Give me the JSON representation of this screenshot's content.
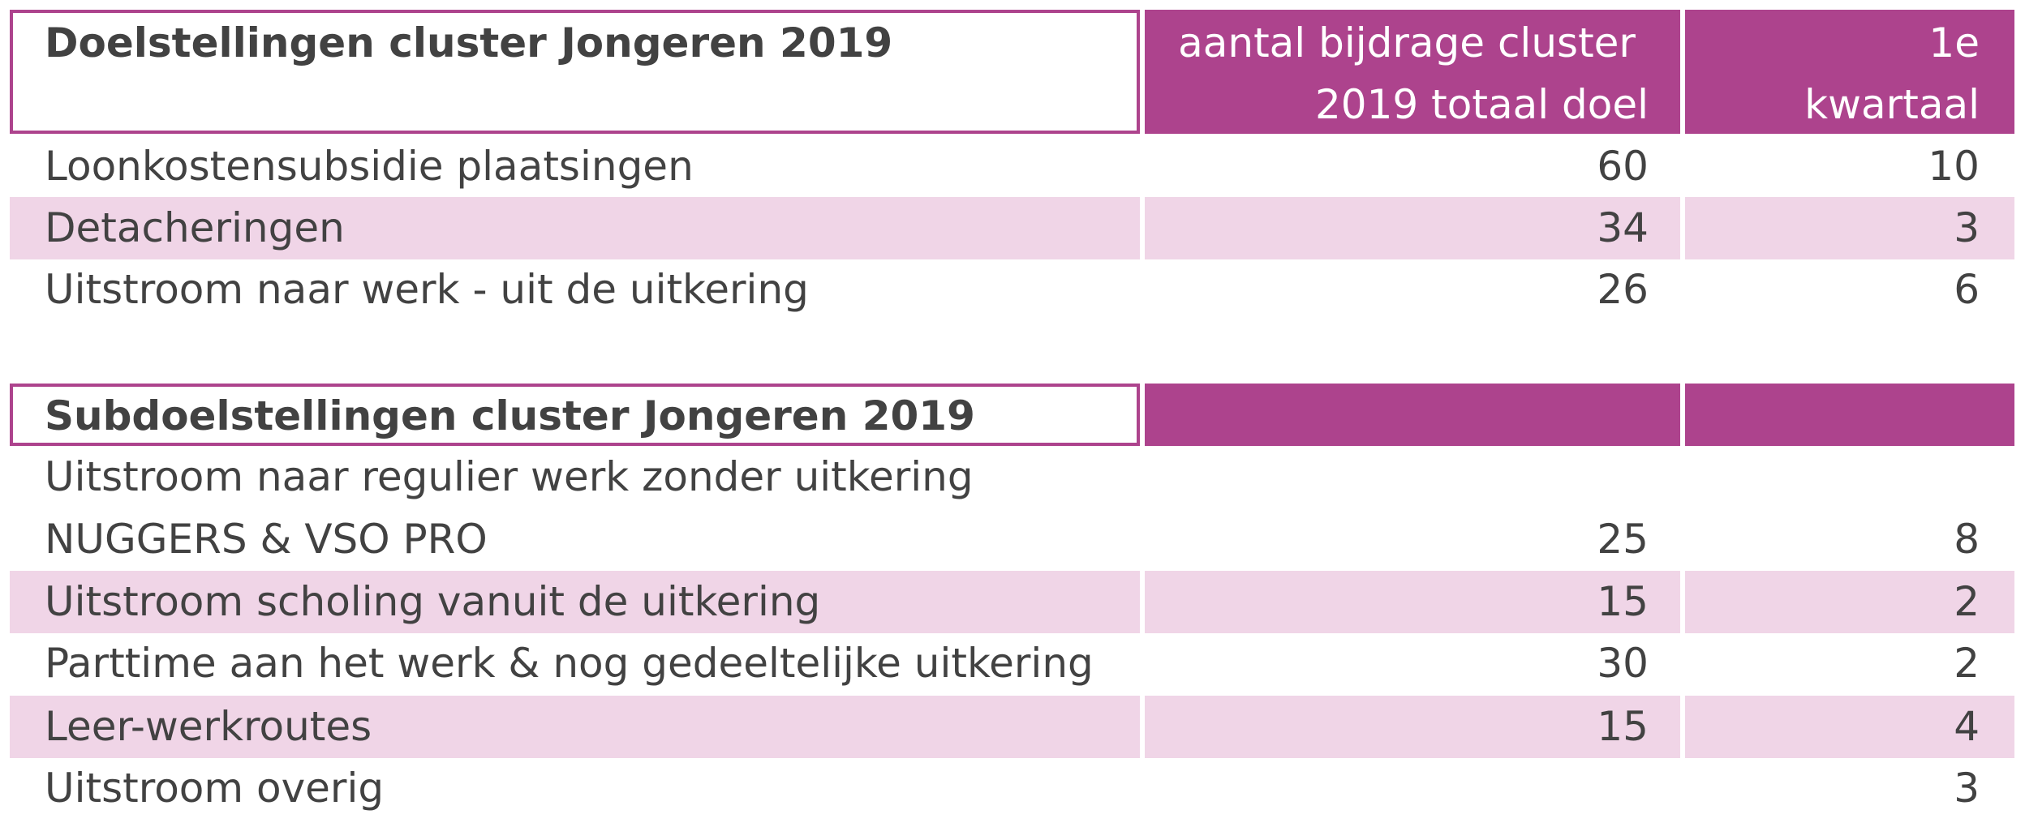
{
  "table1": {
    "title": "Doelstellingen cluster Jongeren 2019",
    "col_header_1": {
      "line1": "aantal bijdrage cluster",
      "line2": "2019 totaal doel"
    },
    "col_header_2": {
      "line1": "1e",
      "line2": "kwartaal"
    },
    "rows": [
      {
        "label": "Loonkostensubsidie plaatsingen",
        "total": "60",
        "q1": "10"
      },
      {
        "label": "Detacheringen",
        "total": "34",
        "q1": "3"
      },
      {
        "label": "Uitstroom naar werk -  uit de uitkering",
        "total": "26",
        "q1": "6"
      }
    ]
  },
  "table2": {
    "title": "Subdoelstellingen cluster Jongeren 2019",
    "rows": [
      {
        "label_line1": "Uitstroom naar regulier werk zonder uitkering",
        "label_line2": "NUGGERS & VSO PRO",
        "total": "25",
        "q1": "8"
      },
      {
        "label": "Uitstroom scholing vanuit de uitkering",
        "total": "15",
        "q1": "2"
      },
      {
        "label": "Parttime aan het werk & nog gedeeltelijke uitkering",
        "total": "30",
        "q1": "2"
      },
      {
        "label": "Leer-werkroutes",
        "total": "15",
        "q1": "4"
      },
      {
        "label": "Uitstroom overig",
        "total": "",
        "q1": "3"
      }
    ]
  },
  "colors": {
    "accent": "#ad438d",
    "band": "#f0d5e7",
    "text": "#424242"
  }
}
